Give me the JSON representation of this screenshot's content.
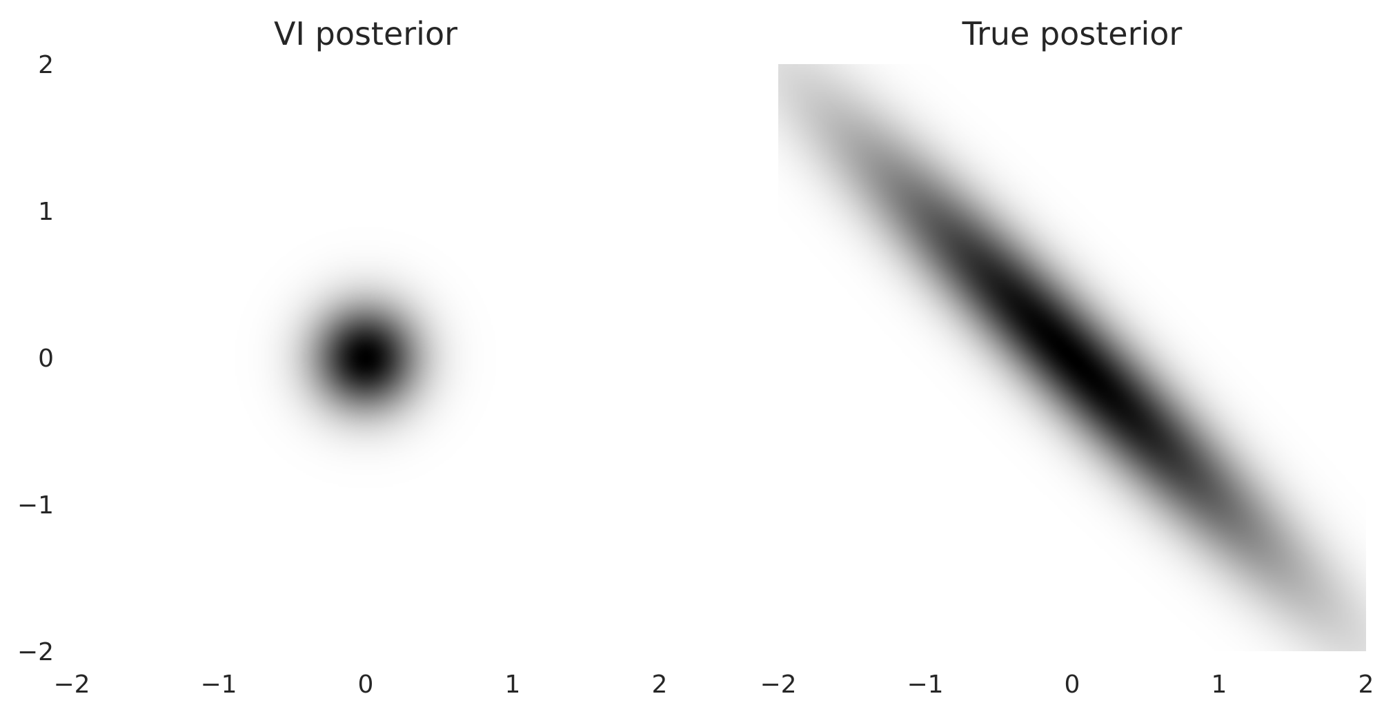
{
  "chart_data": [
    {
      "type": "heatmap",
      "title": "VI posterior",
      "xlabel": "",
      "ylabel": "",
      "xlim": [
        -2,
        2
      ],
      "ylim": [
        -2,
        2
      ],
      "xticks": [
        "−2",
        "−1",
        "0",
        "1",
        "2"
      ],
      "yticks": [
        "2",
        "1",
        "0",
        "−1",
        "−2"
      ],
      "grid": false,
      "colormap": "white-to-black",
      "distribution": {
        "mean": [
          0,
          0
        ],
        "sd": [
          0.25,
          0.25
        ],
        "correlation": 0
      }
    },
    {
      "type": "heatmap",
      "title": "True posterior",
      "xlabel": "",
      "ylabel": "",
      "xlim": [
        -2,
        2
      ],
      "ylim": [
        -2,
        2
      ],
      "xticks": [
        "−2",
        "−1",
        "0",
        "1",
        "2"
      ],
      "grid": false,
      "colormap": "white-to-black",
      "distribution": {
        "mean": [
          0,
          0
        ],
        "sd": [
          1,
          1
        ],
        "correlation": -0.95
      }
    }
  ]
}
